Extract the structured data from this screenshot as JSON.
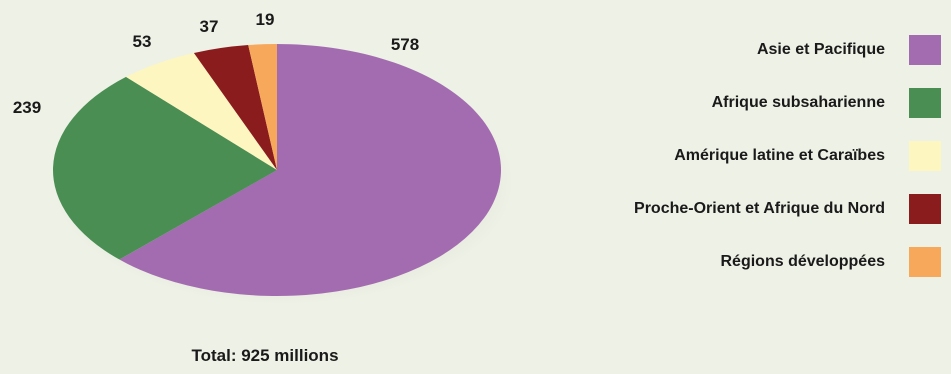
{
  "chart_data": {
    "type": "pie",
    "categories": [
      "Asie et Pacifique",
      "Afrique subsaharienne",
      "Amérique latine et Caraïbes",
      "Proche-Orient et Afrique du Nord",
      "Régions développées"
    ],
    "values": [
      578,
      239,
      53,
      37,
      19
    ],
    "value_labels": [
      "578",
      "239",
      "53",
      "37",
      "19"
    ],
    "colors": [
      "#a46cb0",
      "#4a8e54",
      "#fdf6c0",
      "#8b1c1e",
      "#f7a85a"
    ],
    "total_label": "Total: 925 millions",
    "legend_position": "right"
  }
}
